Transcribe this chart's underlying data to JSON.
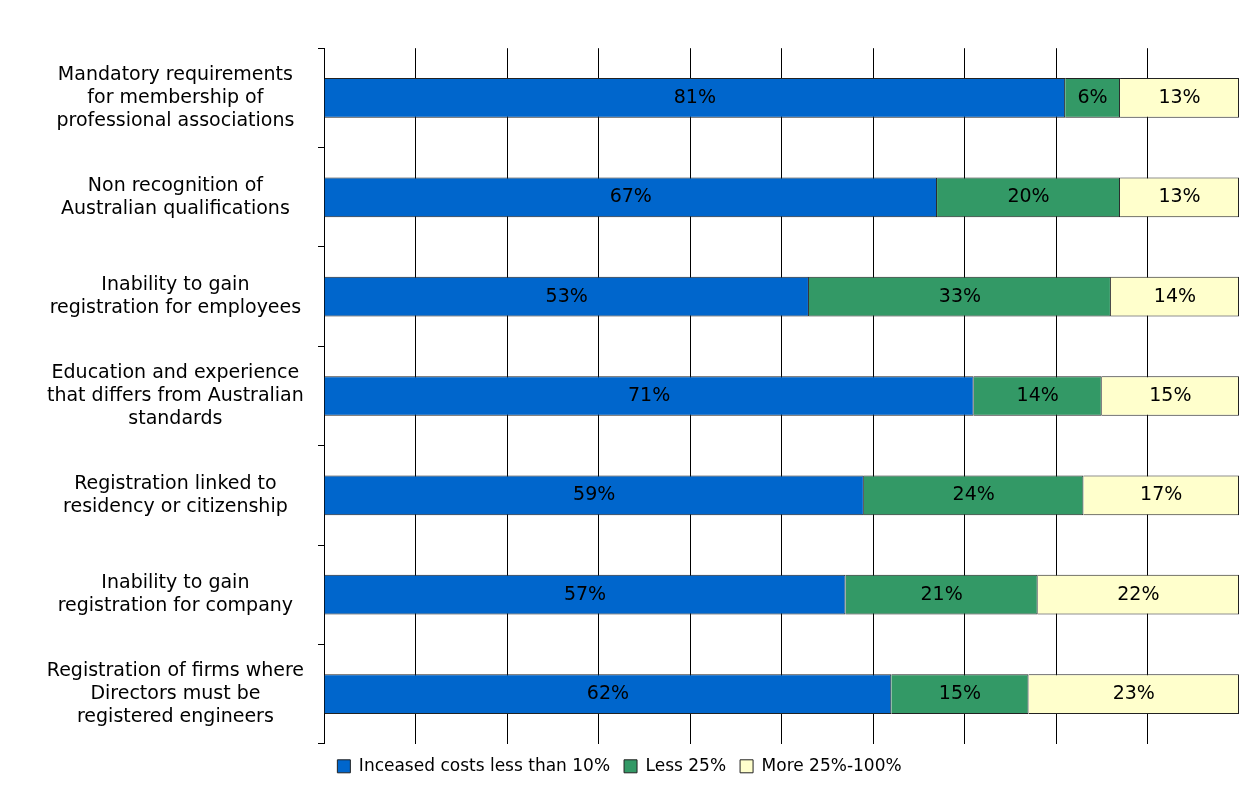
{
  "chart_data": {
    "type": "bar",
    "orientation": "horizontal",
    "stacked": true,
    "categories": [
      "Mandatory requirements for membership of professional associations",
      "Non recognition of Australian qualifications",
      "Inability to gain registration for employees",
      "Education and experience that differs from Australian standards",
      "Registration linked to residency or citizenship",
      "Inability to gain registration for company",
      "Registration of firms where Directors must be registered engineers"
    ],
    "series": [
      {
        "name": "Inceased costs less than 10%",
        "color": "#0066cc",
        "values": [
          81,
          67,
          53,
          71,
          59,
          57,
          62
        ],
        "value_labels": [
          "81%",
          "67%",
          "53%",
          "71%",
          "59%",
          "57%",
          "62%"
        ]
      },
      {
        "name": "Less 25%",
        "color": "#339966",
        "values": [
          6,
          20,
          33,
          14,
          24,
          21,
          15
        ],
        "value_labels": [
          "6%",
          "20%",
          "33%",
          "14%",
          "24%",
          "21%",
          "15%"
        ]
      },
      {
        "name": "More 25%-100%",
        "color": "#ffffcc",
        "values": [
          13,
          13,
          14,
          15,
          17,
          22,
          23
        ],
        "value_labels": [
          "13%",
          "13%",
          "14%",
          "15%",
          "17%",
          "22%",
          "23%"
        ]
      }
    ],
    "tick_labels": "y",
    "grid": "x",
    "legend": "bottom"
  }
}
